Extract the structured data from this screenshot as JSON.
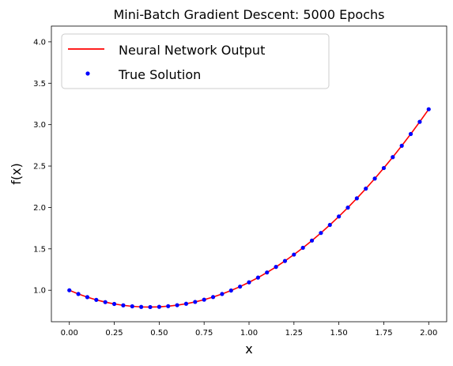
{
  "chart_data": {
    "type": "line",
    "title": "Mini-Batch Gradient Descent: 5000 Epochs",
    "xlabel": "x",
    "ylabel": "f(x)",
    "xlim": [
      -0.1,
      2.1
    ],
    "ylim": [
      0.62,
      4.19
    ],
    "xticks": [
      "0.00",
      "0.25",
      "0.50",
      "0.75",
      "1.00",
      "1.25",
      "1.50",
      "1.75",
      "2.00"
    ],
    "yticks": [
      "1.0",
      "1.5",
      "2.0",
      "2.5",
      "3.0",
      "3.5",
      "4.0"
    ],
    "grid": false,
    "legend_position": "top-left",
    "series": [
      {
        "name": "Neural Network Output",
        "style": "line",
        "color": "#ff0000",
        "x": [
          0.0,
          0.05,
          0.1,
          0.15,
          0.2,
          0.25,
          0.3,
          0.35,
          0.4,
          0.45,
          0.5,
          0.55,
          0.6,
          0.65,
          0.7,
          0.75,
          0.8,
          0.85,
          0.9,
          0.95,
          1.0,
          1.05,
          1.1,
          1.15,
          1.2,
          1.25,
          1.3,
          1.35,
          1.4,
          1.45,
          1.5,
          1.55,
          1.6,
          1.65,
          1.7,
          1.75,
          1.8,
          1.85,
          1.9,
          1.95,
          2.0
        ],
        "y": [
          1.0,
          0.955,
          0.917,
          0.884,
          0.857,
          0.835,
          0.818,
          0.806,
          0.799,
          0.797,
          0.8,
          0.808,
          0.82,
          0.837,
          0.859,
          0.886,
          0.918,
          0.955,
          0.997,
          1.044,
          1.096,
          1.153,
          1.215,
          1.282,
          1.354,
          1.431,
          1.513,
          1.6,
          1.692,
          1.789,
          1.891,
          1.998,
          2.11,
          2.227,
          2.349,
          2.476,
          2.608,
          2.745,
          2.887,
          3.034,
          3.186
        ]
      },
      {
        "name": "True Solution",
        "style": "points",
        "color": "#0000ff",
        "x": [
          0.0,
          0.05,
          0.1,
          0.15,
          0.2,
          0.25,
          0.3,
          0.35,
          0.4,
          0.45,
          0.5,
          0.55,
          0.6,
          0.65,
          0.7,
          0.75,
          0.8,
          0.85,
          0.9,
          0.95,
          1.0,
          1.05,
          1.1,
          1.15,
          1.2,
          1.25,
          1.3,
          1.35,
          1.4,
          1.45,
          1.5,
          1.55,
          1.6,
          1.65,
          1.7,
          1.75,
          1.8,
          1.85,
          1.9,
          1.95,
          2.0
        ],
        "y": [
          1.0,
          0.955,
          0.917,
          0.884,
          0.857,
          0.835,
          0.818,
          0.806,
          0.799,
          0.797,
          0.8,
          0.808,
          0.82,
          0.837,
          0.859,
          0.886,
          0.918,
          0.955,
          0.997,
          1.044,
          1.096,
          1.153,
          1.215,
          1.282,
          1.354,
          1.431,
          1.513,
          1.6,
          1.692,
          1.789,
          1.891,
          1.998,
          2.11,
          2.227,
          2.349,
          2.476,
          2.608,
          2.745,
          2.887,
          3.034,
          3.186
        ]
      }
    ]
  }
}
